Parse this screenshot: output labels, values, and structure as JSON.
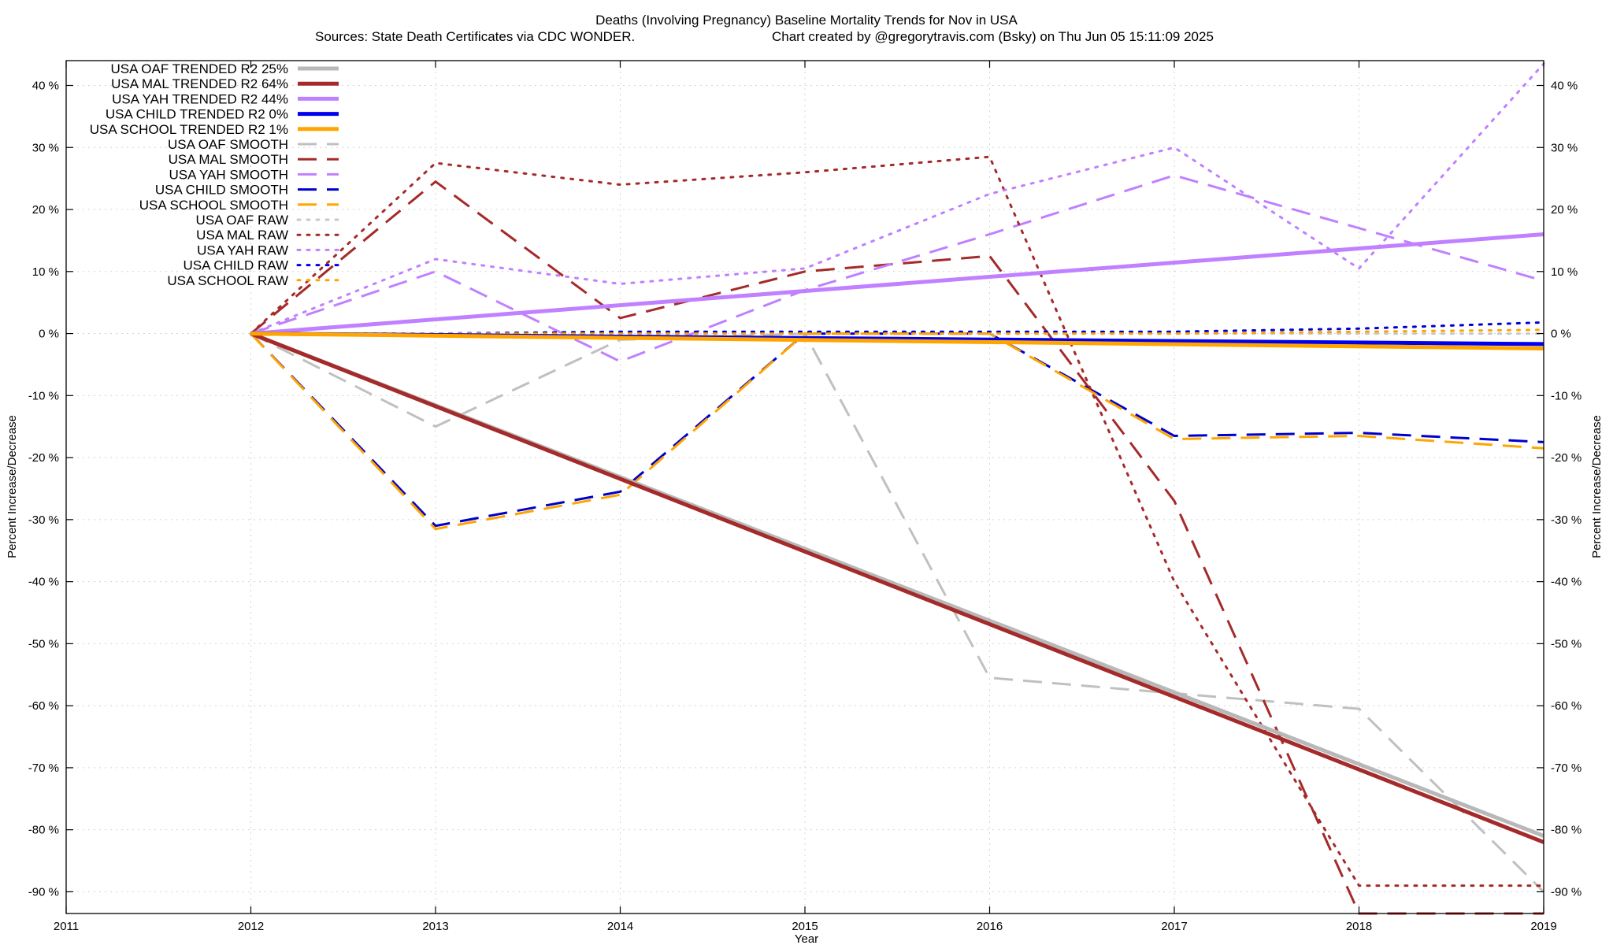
{
  "chart_data": {
    "type": "line",
    "title": "Deaths (Involving Pregnancy)  Baseline Mortality Trends for Nov in USA",
    "subtitle_left": "Sources: State Death Certificates via CDC WONDER.",
    "subtitle_right": "Chart created by @gregorytravis.com (Bsky) on Thu Jun 05 15:11:09 2025",
    "xlabel": "Year",
    "ylabel": "Percent Increase/Decrease",
    "y2label": "Percent Increase/Decrease",
    "xlim": [
      2011,
      2019
    ],
    "ylim": [
      -93.5,
      44
    ],
    "x_ticks": [
      "2011",
      "2012",
      "2013",
      "2014",
      "2015",
      "2016",
      "2017",
      "2018",
      "2019"
    ],
    "y_ticks": [
      "40 %",
      "30 %",
      "20 %",
      "10 %",
      "0 %",
      "-10 %",
      "-20 %",
      "-30 %",
      "-40 %",
      "-50 %",
      "-60 %",
      "-70 %",
      "-80 %",
      "-90 %"
    ],
    "y_tick_values": [
      40,
      30,
      20,
      10,
      0,
      -10,
      -20,
      -30,
      -40,
      -50,
      -60,
      -70,
      -80,
      -90
    ],
    "grid": true,
    "legend_position": "top-left",
    "series": [
      {
        "name": "USA OAF TRENDED R2  25%",
        "style": "solid",
        "color": "#b8b8b8",
        "x": [
          2012,
          2019
        ],
        "y": [
          0,
          -81
        ]
      },
      {
        "name": "USA MAL TRENDED R2  64%",
        "style": "solid",
        "color": "#a52a2a",
        "x": [
          2012,
          2019
        ],
        "y": [
          0,
          -82
        ]
      },
      {
        "name": "USA YAH TRENDED R2  44%",
        "style": "solid",
        "color": "#c080ff",
        "x": [
          2012,
          2019
        ],
        "y": [
          0,
          16
        ]
      },
      {
        "name": "USA CHILD TRENDED R2   0%",
        "style": "solid",
        "color": "#0000ee",
        "x": [
          2012,
          2019
        ],
        "y": [
          0,
          -1.7
        ]
      },
      {
        "name": "USA SCHOOL TRENDED R2   1%",
        "style": "solid",
        "color": "#ffa500",
        "x": [
          2012,
          2019
        ],
        "y": [
          0,
          -2.4
        ]
      },
      {
        "name": "USA OAF SMOOTH",
        "style": "dashed",
        "color": "#c0c0c0",
        "x": [
          2012,
          2013,
          2014,
          2015,
          2016,
          2017,
          2018,
          2019
        ],
        "y": [
          0,
          -15,
          -1,
          0,
          -55.5,
          -58,
          -60.5,
          -90
        ]
      },
      {
        "name": "USA MAL SMOOTH",
        "style": "dashed",
        "color": "#a52a2a",
        "x": [
          2012,
          2013,
          2014,
          2015,
          2016,
          2017,
          2018,
          2019
        ],
        "y": [
          0,
          24.5,
          2.5,
          10,
          12.5,
          -27,
          -93.5,
          -93.5
        ]
      },
      {
        "name": "USA YAH SMOOTH",
        "style": "dashed",
        "color": "#c080ff",
        "x": [
          2012,
          2013,
          2014,
          2015,
          2016,
          2017,
          2018,
          2019
        ],
        "y": [
          0,
          10,
          -4.5,
          7,
          16,
          25.5,
          17,
          8.5
        ]
      },
      {
        "name": "USA CHILD SMOOTH",
        "style": "dashed",
        "color": "#0000cc",
        "x": [
          2012,
          2013,
          2014,
          2015,
          2016,
          2017,
          2018,
          2019
        ],
        "y": [
          0,
          -31,
          -25.5,
          0,
          0,
          -16.5,
          -16,
          -17.5
        ]
      },
      {
        "name": "USA SCHOOL SMOOTH",
        "style": "dashed",
        "color": "#ffa500",
        "x": [
          2012,
          2013,
          2014,
          2015,
          2016,
          2017,
          2018,
          2019
        ],
        "y": [
          0,
          -31.5,
          -26,
          0,
          0,
          -17,
          -16.5,
          -18.5
        ]
      },
      {
        "name": "USA OAF RAW",
        "style": "dotted",
        "color": "#c8c8c8",
        "x": [
          2012,
          2013,
          2014,
          2015,
          2016,
          2017,
          2018,
          2019
        ],
        "y": [
          0,
          0,
          0,
          0,
          0,
          0,
          0,
          0
        ]
      },
      {
        "name": "USA MAL RAW",
        "style": "dotted",
        "color": "#a52a2a",
        "x": [
          2012,
          2013,
          2014,
          2015,
          2016,
          2017,
          2018,
          2019
        ],
        "y": [
          0,
          27.5,
          24,
          26,
          28.5,
          -40,
          -89,
          -89
        ]
      },
      {
        "name": "USA YAH RAW",
        "style": "dotted",
        "color": "#c080ff",
        "x": [
          2012,
          2013,
          2014,
          2015,
          2016,
          2017,
          2018,
          2019
        ],
        "y": [
          0,
          12,
          8,
          10.5,
          22.5,
          30,
          10.5,
          43.5
        ]
      },
      {
        "name": "USA CHILD RAW",
        "style": "dotted",
        "color": "#0000dd",
        "x": [
          2012,
          2013,
          2014,
          2015,
          2016,
          2017,
          2018,
          2019
        ],
        "y": [
          0,
          0,
          0.3,
          0.3,
          0.3,
          0.3,
          0.8,
          1.8
        ]
      },
      {
        "name": "USA SCHOOL RAW",
        "style": "dotted",
        "color": "#ffa500",
        "x": [
          2012,
          2013,
          2014,
          2015,
          2016,
          2017,
          2018,
          2019
        ],
        "y": [
          0,
          0,
          0,
          0,
          0,
          0,
          0.3,
          0.6
        ]
      }
    ]
  }
}
